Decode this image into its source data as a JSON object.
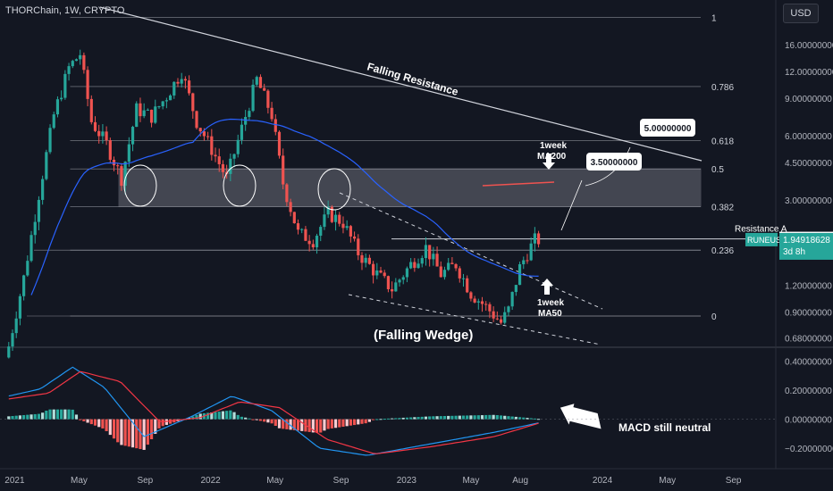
{
  "header": {
    "symbol_line": "THORChain, 1W, CRYPTO",
    "currency_button": "USD"
  },
  "colors": {
    "background": "#131722",
    "up": "#26a69a",
    "down": "#ef5350",
    "ma50": "#2962ff",
    "macd": "#2196f3",
    "signal": "#f23645",
    "axis_text": "#b2b5be",
    "fib_line": "#787b86",
    "text": "#d1d4dc"
  },
  "chart_data": [
    {
      "type": "candlestick",
      "title": "THORChain, 1W, CRYPTO",
      "scale": "log",
      "ylim": [
        0.62,
        24
      ],
      "y_ticks": [
        "16.00000000",
        "12.00000000",
        "9.00000000",
        "6.00000000",
        "4.50000000",
        "3.00000000",
        "1.20000000",
        "0.90000000",
        "0.68000000"
      ],
      "y_tick_values": [
        16,
        12,
        9,
        6,
        4.5,
        3,
        1.2,
        0.9,
        0.68
      ],
      "x_ticks": [
        "2021",
        "May",
        "Sep",
        "2022",
        "May",
        "Sep",
        "2023",
        "May",
        "Aug",
        "2024",
        "May",
        "Sep"
      ],
      "x_tick_dates": [
        "2021-01-01",
        "2021-05-01",
        "2021-09-01",
        "2022-01-01",
        "2022-05-01",
        "2022-09-01",
        "2023-01-01",
        "2023-05-01",
        "2023-08-01",
        "2024-01-01",
        "2024-05-01",
        "2024-09-01"
      ],
      "weekly_close_path": {
        "dates": [
          "2020-12-21",
          "2021-01-18",
          "2021-02-15",
          "2021-03-15",
          "2021-04-12",
          "2021-05-03",
          "2021-05-24",
          "2021-06-21",
          "2021-07-19",
          "2021-08-16",
          "2021-09-13",
          "2021-10-11",
          "2021-11-08",
          "2021-12-06",
          "2022-01-03",
          "2022-01-31",
          "2022-02-28",
          "2022-03-28",
          "2022-04-25",
          "2022-05-16",
          "2022-06-13",
          "2022-07-11",
          "2022-08-08",
          "2022-09-05",
          "2022-10-03",
          "2022-11-07",
          "2022-12-05",
          "2023-01-09",
          "2023-02-06",
          "2023-03-06",
          "2023-04-03",
          "2023-05-01",
          "2023-05-29",
          "2023-06-26",
          "2023-07-10",
          "2023-07-31",
          "2023-08-14",
          "2023-08-28"
        ],
        "values": [
          0.62,
          1.3,
          3.2,
          7.5,
          12.5,
          14.5,
          7.0,
          5.5,
          3.8,
          8.0,
          7.4,
          9.2,
          12.0,
          7.0,
          5.2,
          3.8,
          6.5,
          11.0,
          7.5,
          3.6,
          2.1,
          1.95,
          2.6,
          2.35,
          1.7,
          1.35,
          1.15,
          1.5,
          1.8,
          1.35,
          1.5,
          1.1,
          0.95,
          0.8,
          0.92,
          1.45,
          1.7,
          1.95
        ]
      },
      "current_price": 1.94918628,
      "series_label": "RUNEUSD",
      "countdown": "3d 8h",
      "resistance": {
        "label": "Resistance A",
        "value": 1.975
      },
      "fibonacci": [
        {
          "level": "1",
          "value": 21.5
        },
        {
          "level": "0.786",
          "value": 10.2
        },
        {
          "level": "0.618",
          "value": 5.7
        },
        {
          "level": "0.5",
          "value": 4.2
        },
        {
          "level": "0.382",
          "value": 2.8
        },
        {
          "level": "0.236",
          "value": 1.75
        },
        {
          "level": "0",
          "value": 0.86
        }
      ],
      "support_zone": [
        2.8,
        4.2
      ],
      "targets": [
        "3.50000000",
        "5.00000000"
      ],
      "annotations": [
        "Falling Resistance",
        "(Falling Wedge)",
        "1week MA200",
        "1week MA50"
      ]
    },
    {
      "type": "macd",
      "ylim": [
        -0.28,
        0.46
      ],
      "y_ticks": [
        "0.40000000",
        "0.20000000",
        "0.00000000",
        "−0.20000000"
      ],
      "y_tick_values": [
        0.4,
        0.2,
        0.0,
        -0.2
      ],
      "annotation": "MACD still neutral"
    }
  ]
}
